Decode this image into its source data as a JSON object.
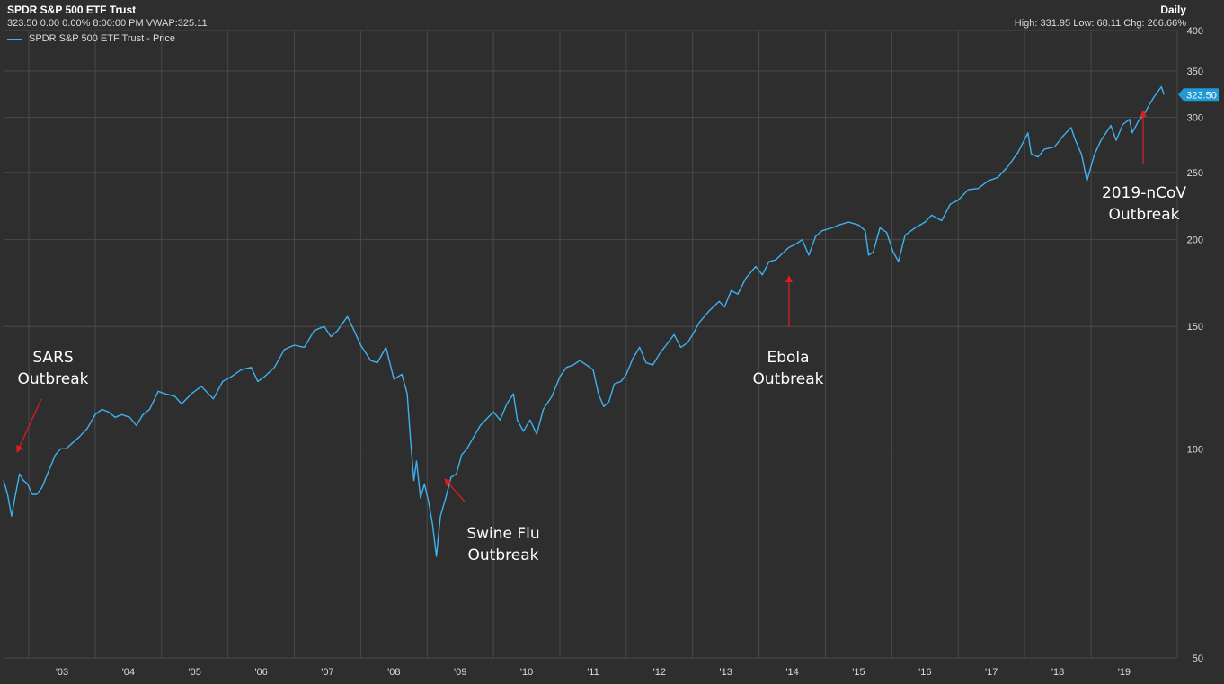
{
  "header": {
    "title": "SPDR S&P 500 ETF Trust",
    "quote": "323.50 0.00 0.00% 8:00:00 PM VWAP:325.11",
    "legend": "SPDR S&P 500 ETF Trust - Price",
    "interval": "Daily",
    "stats": "High: 331.95 Low: 68.11 Chg: 266.66%"
  },
  "price_tag": "323.50",
  "colors": {
    "line": "#3db2ef",
    "background": "#2e2e2e",
    "grid": "#4a4a4a",
    "arrow": "#d81e1e",
    "text": "#e6e6e6"
  },
  "chart_data": {
    "type": "line",
    "title": "SPDR S&P 500 ETF Trust",
    "ylabel": "",
    "xlabel": "",
    "y_scale": "log",
    "ylim": [
      50,
      400
    ],
    "xlim": [
      2002.62,
      2020.3
    ],
    "y_ticks": [
      50,
      100,
      150,
      200,
      250,
      300,
      350,
      400
    ],
    "x_ticks": [
      {
        "x": 2003,
        "label": "'03"
      },
      {
        "x": 2004,
        "label": "'04"
      },
      {
        "x": 2005,
        "label": "'05"
      },
      {
        "x": 2006,
        "label": "'06"
      },
      {
        "x": 2007,
        "label": "'07"
      },
      {
        "x": 2008,
        "label": "'08"
      },
      {
        "x": 2009,
        "label": "'09"
      },
      {
        "x": 2010,
        "label": "'10"
      },
      {
        "x": 2011,
        "label": "'11"
      },
      {
        "x": 2012,
        "label": "'12"
      },
      {
        "x": 2013,
        "label": "'13"
      },
      {
        "x": 2014,
        "label": "'14"
      },
      {
        "x": 2015,
        "label": "'15"
      },
      {
        "x": 2016,
        "label": "'16"
      },
      {
        "x": 2017,
        "label": "'17"
      },
      {
        "x": 2018,
        "label": "'18"
      },
      {
        "x": 2019,
        "label": "'19"
      }
    ],
    "grid": true,
    "legend_position": "top-left",
    "series": [
      {
        "name": "SPDR S&P 500 ETF Trust - Price",
        "points": [
          [
            2002.62,
            90
          ],
          [
            2002.68,
            86
          ],
          [
            2002.74,
            80
          ],
          [
            2002.8,
            86
          ],
          [
            2002.86,
            92
          ],
          [
            2002.92,
            90
          ],
          [
            2002.98,
            89
          ],
          [
            2003.05,
            86
          ],
          [
            2003.12,
            86
          ],
          [
            2003.2,
            88
          ],
          [
            2003.3,
            93
          ],
          [
            2003.4,
            98
          ],
          [
            2003.48,
            100
          ],
          [
            2003.56,
            100
          ],
          [
            2003.66,
            102
          ],
          [
            2003.76,
            104
          ],
          [
            2003.88,
            107
          ],
          [
            2004.0,
            112
          ],
          [
            2004.1,
            114
          ],
          [
            2004.2,
            113
          ],
          [
            2004.3,
            111
          ],
          [
            2004.4,
            112
          ],
          [
            2004.52,
            111
          ],
          [
            2004.62,
            108
          ],
          [
            2004.72,
            112
          ],
          [
            2004.82,
            114
          ],
          [
            2004.95,
            121
          ],
          [
            2005.05,
            120
          ],
          [
            2005.2,
            119
          ],
          [
            2005.3,
            116
          ],
          [
            2005.45,
            120
          ],
          [
            2005.6,
            123
          ],
          [
            2005.78,
            118
          ],
          [
            2005.92,
            125
          ],
          [
            2006.05,
            127
          ],
          [
            2006.2,
            130
          ],
          [
            2006.35,
            131
          ],
          [
            2006.45,
            125
          ],
          [
            2006.55,
            127
          ],
          [
            2006.7,
            131
          ],
          [
            2006.85,
            139
          ],
          [
            2007.0,
            141
          ],
          [
            2007.15,
            140
          ],
          [
            2007.3,
            148
          ],
          [
            2007.45,
            150
          ],
          [
            2007.55,
            145
          ],
          [
            2007.65,
            148
          ],
          [
            2007.8,
            155
          ],
          [
            2007.9,
            148
          ],
          [
            2008.0,
            141
          ],
          [
            2008.15,
            134
          ],
          [
            2008.25,
            133
          ],
          [
            2008.38,
            140
          ],
          [
            2008.5,
            126
          ],
          [
            2008.62,
            128
          ],
          [
            2008.7,
            120
          ],
          [
            2008.75,
            103
          ],
          [
            2008.8,
            90
          ],
          [
            2008.84,
            96
          ],
          [
            2008.9,
            85
          ],
          [
            2008.96,
            89
          ],
          [
            2009.02,
            84
          ],
          [
            2009.08,
            78
          ],
          [
            2009.14,
            70
          ],
          [
            2009.2,
            80
          ],
          [
            2009.28,
            85
          ],
          [
            2009.36,
            91
          ],
          [
            2009.44,
            92
          ],
          [
            2009.52,
            98
          ],
          [
            2009.6,
            100
          ],
          [
            2009.7,
            104
          ],
          [
            2009.8,
            108
          ],
          [
            2009.92,
            111
          ],
          [
            2010.0,
            113
          ],
          [
            2010.1,
            110
          ],
          [
            2010.2,
            116
          ],
          [
            2010.3,
            120
          ],
          [
            2010.36,
            110
          ],
          [
            2010.45,
            106
          ],
          [
            2010.55,
            110
          ],
          [
            2010.65,
            105
          ],
          [
            2010.75,
            114
          ],
          [
            2010.88,
            119
          ],
          [
            2011.0,
            127
          ],
          [
            2011.1,
            131
          ],
          [
            2011.2,
            132
          ],
          [
            2011.3,
            134
          ],
          [
            2011.4,
            132
          ],
          [
            2011.5,
            130
          ],
          [
            2011.58,
            120
          ],
          [
            2011.66,
            115
          ],
          [
            2011.74,
            117
          ],
          [
            2011.82,
            124
          ],
          [
            2011.92,
            125
          ],
          [
            2012.0,
            128
          ],
          [
            2012.1,
            135
          ],
          [
            2012.2,
            140
          ],
          [
            2012.3,
            133
          ],
          [
            2012.4,
            132
          ],
          [
            2012.5,
            137
          ],
          [
            2012.6,
            141
          ],
          [
            2012.72,
            146
          ],
          [
            2012.82,
            140
          ],
          [
            2012.92,
            142
          ],
          [
            2013.0,
            146
          ],
          [
            2013.1,
            152
          ],
          [
            2013.25,
            158
          ],
          [
            2013.4,
            163
          ],
          [
            2013.48,
            160
          ],
          [
            2013.58,
            169
          ],
          [
            2013.68,
            167
          ],
          [
            2013.8,
            176
          ],
          [
            2013.95,
            183
          ],
          [
            2014.05,
            178
          ],
          [
            2014.15,
            186
          ],
          [
            2014.25,
            187
          ],
          [
            2014.35,
            191
          ],
          [
            2014.45,
            195
          ],
          [
            2014.55,
            197
          ],
          [
            2014.65,
            200
          ],
          [
            2014.75,
            190
          ],
          [
            2014.85,
            202
          ],
          [
            2014.95,
            206
          ],
          [
            2015.1,
            208
          ],
          [
            2015.2,
            210
          ],
          [
            2015.35,
            212
          ],
          [
            2015.5,
            210
          ],
          [
            2015.6,
            206
          ],
          [
            2015.65,
            190
          ],
          [
            2015.72,
            192
          ],
          [
            2015.82,
            208
          ],
          [
            2015.92,
            205
          ],
          [
            2016.02,
            192
          ],
          [
            2016.1,
            186
          ],
          [
            2016.2,
            203
          ],
          [
            2016.35,
            208
          ],
          [
            2016.5,
            212
          ],
          [
            2016.6,
            217
          ],
          [
            2016.75,
            213
          ],
          [
            2016.88,
            225
          ],
          [
            2017.0,
            228
          ],
          [
            2017.15,
            236
          ],
          [
            2017.3,
            237
          ],
          [
            2017.45,
            243
          ],
          [
            2017.6,
            246
          ],
          [
            2017.75,
            255
          ],
          [
            2017.9,
            267
          ],
          [
            2018.05,
            285
          ],
          [
            2018.1,
            266
          ],
          [
            2018.2,
            263
          ],
          [
            2018.3,
            270
          ],
          [
            2018.45,
            272
          ],
          [
            2018.58,
            282
          ],
          [
            2018.7,
            290
          ],
          [
            2018.76,
            279
          ],
          [
            2018.86,
            265
          ],
          [
            2018.94,
            243
          ],
          [
            2018.98,
            251
          ],
          [
            2019.05,
            265
          ],
          [
            2019.15,
            278
          ],
          [
            2019.3,
            292
          ],
          [
            2019.38,
            278
          ],
          [
            2019.48,
            293
          ],
          [
            2019.58,
            298
          ],
          [
            2019.62,
            285
          ],
          [
            2019.72,
            297
          ],
          [
            2019.8,
            303
          ],
          [
            2019.88,
            313
          ],
          [
            2019.95,
            321
          ],
          [
            2020.02,
            328
          ],
          [
            2020.06,
            332
          ],
          [
            2020.1,
            323.5
          ]
        ]
      }
    ],
    "annotations": [
      {
        "text": "SARS\nOutbreak"
      },
      {
        "text": "Swine Flu\nOutbreak"
      },
      {
        "text": "Ebola\nOutbreak"
      },
      {
        "text": "2019-nCoV\nOutbreak"
      }
    ]
  }
}
